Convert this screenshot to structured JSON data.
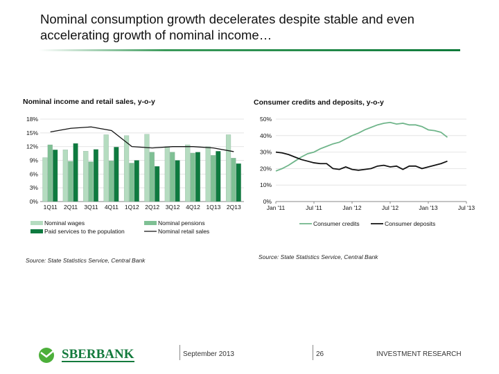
{
  "slide": {
    "title": "Nominal consumption growth decelerates despite stable and even accelerating growth of nominal income…",
    "date": "September 2013",
    "page": "26",
    "section": "INVESTMENT RESEARCH",
    "logo_text": "SBERBANK"
  },
  "colors": {
    "wages": "#b5dcc0",
    "pensions": "#7fc094",
    "services": "#0e7a3f",
    "retail": "#111111",
    "credits": "#6fb58a",
    "deposits": "#111111",
    "accent": "#137a3c"
  },
  "chart_data": [
    {
      "type": "bar",
      "title": "Nominal income and retail sales, y-o-y",
      "source": "Source: State Statistics Service, Central Bank",
      "categories": [
        "1Q11",
        "2Q11",
        "3Q11",
        "4Q11",
        "1Q12",
        "2Q12",
        "3Q12",
        "4Q12",
        "1Q13",
        "2Q13"
      ],
      "ylim": [
        0,
        18
      ],
      "yticks": [
        "0%",
        "3%",
        "6%",
        "9%",
        "12%",
        "15%",
        "18%"
      ],
      "grid": true,
      "legend": "bottom",
      "series": [
        {
          "name": "Nominal wages",
          "values": [
            9.6,
            11.3,
            11.0,
            14.6,
            14.4,
            14.7,
            12.0,
            12.4,
            12.0,
            14.6
          ]
        },
        {
          "name": "Nominal pensions",
          "values": [
            12.4,
            8.8,
            8.7,
            8.9,
            8.4,
            10.8,
            10.8,
            10.6,
            10.1,
            9.5
          ]
        },
        {
          "name": "Paid services to the population",
          "values": [
            11.3,
            12.7,
            11.4,
            11.9,
            9.0,
            7.7,
            9.0,
            10.8,
            11.0,
            8.3
          ]
        },
        {
          "name": "Nominal retail sales",
          "type": "line",
          "values": [
            15.2,
            16.0,
            16.3,
            15.5,
            12.0,
            11.7,
            12.0,
            12.0,
            11.7,
            10.9
          ]
        }
      ]
    },
    {
      "type": "line",
      "title": "Consumer credits and deposits, y-o-y",
      "source": "Source: State Statistics Service, Central Bank",
      "x_start": "Jan 2011",
      "x_freq": "monthly",
      "xticks": [
        "Jan '11",
        "Jul '11",
        "Jan '12",
        "Jul '12",
        "Jan '13",
        "Jul '13"
      ],
      "ylim": [
        0,
        50
      ],
      "yticks": [
        "0%",
        "10%",
        "20%",
        "30%",
        "40%",
        "50%"
      ],
      "grid": true,
      "legend": "bottom",
      "series": [
        {
          "name": "Consumer credits",
          "values": [
            18.5,
            20,
            22,
            24.5,
            27,
            29,
            30,
            32,
            33.5,
            35,
            36,
            38,
            40,
            41.5,
            43.5,
            45,
            46.5,
            47.5,
            48,
            47,
            47.5,
            46.5,
            46.5,
            45.5,
            43.5,
            43,
            42,
            39
          ]
        },
        {
          "name": "Consumer deposits",
          "values": [
            30,
            29.5,
            28.5,
            27,
            25.5,
            24.5,
            23.5,
            23,
            23,
            20,
            19.5,
            21,
            19.5,
            19,
            19.5,
            20,
            21.5,
            22,
            21,
            21.5,
            19.5,
            21.5,
            21.5,
            20,
            21,
            22,
            23,
            24.5
          ]
        }
      ]
    }
  ]
}
